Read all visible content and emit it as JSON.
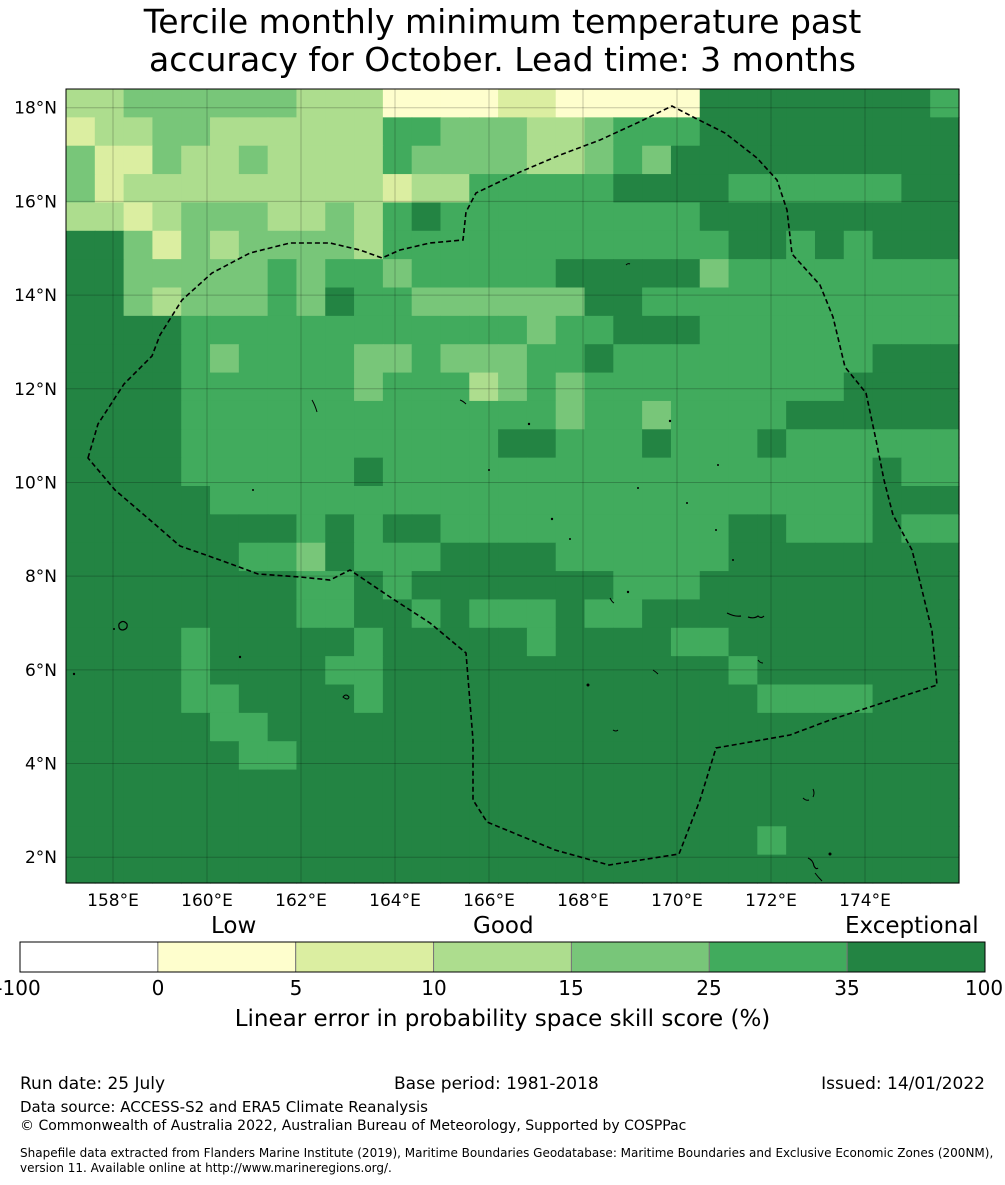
{
  "title_line1": "Tercile monthly minimum temperature past",
  "title_line2": "accuracy for October. Lead time: 3 months",
  "map": {
    "lon_ticks": [
      "158°E",
      "160°E",
      "162°E",
      "164°E",
      "166°E",
      "168°E",
      "170°E",
      "172°E",
      "174°E"
    ],
    "lat_ticks": [
      "18°N",
      "16°N",
      "14°N",
      "12°N",
      "10°N",
      "8°N",
      "6°N",
      "4°N",
      "2°N"
    ],
    "lon_range": [
      157.0,
      176.0
    ],
    "lat_range": [
      1.45,
      18.4
    ],
    "grid": true
  },
  "legend": {
    "category_labels": [
      "Low",
      "Good",
      "Exceptional"
    ],
    "ticks": [
      "-100",
      "0",
      "5",
      "10",
      "15",
      "25",
      "35",
      "100"
    ],
    "colors": [
      "#ffffff",
      "#fefecd",
      "#dbeea1",
      "#addd8e",
      "#78c679",
      "#41ab5d",
      "#238443"
    ],
    "title": "Linear error in probability space skill score (%)"
  },
  "footer": {
    "run_date": "Run date: 25 July",
    "base_period": "Base period: 1981-2018",
    "issued": "Issued: 14/01/2022",
    "data_source": "Data source: ACCESS-S2 and ERA5 Climate Reanalysis",
    "copyright": "© Commonwealth of Australia 2022, Australian Bureau of Meteorology, Supported by COSPPac",
    "shapefile_line1": "Shapefile data extracted from Flanders Marine Institute (2019), Maritime Boundaries Geodatabase: Maritime Boundaries and Exclusive Economic Zones (200NM),",
    "shapefile_line2": "version 11. Available online at http://www.marineregions.org/."
  },
  "grid_rows": [
    "3344444433311112211111666666665",
    "2334433333355444334555666666666",
    "4224334333354444334546666666666",
    "4233333333323355555666655555566",
    "3323444334356555555555666666666",
    "6642434444355555555555566565666",
    "6644444545545555566666455555555",
    "6643444546554444446655555555555",
    "6666555555555555455666555555555",
    "6666545555445444556555555555666",
    "6666555555455534545555555556666",
    "6666555555555555545545555666666",
    "6666555555555556655565556555555",
    "6666555555655555555555555555655",
    "6666655555555555555555555555666",
    "6666666656566555555555566555655",
    "6666665546555666655555566666666",
    "6666666655656666666555666666666",
    "6666666655665655565566666666666",
    "6666566666566666566665566666666",
    "6666566665566666666666656666666",
    "6666556666566666666666665555666",
    "6666655666666666666666666666666",
    "6666665566666666666666666666666",
    "6666666666666666666666666666666",
    "6666666666666666666666666666666",
    "6666666666666666666666665666666",
    "6666666666666666666666666666666"
  ]
}
